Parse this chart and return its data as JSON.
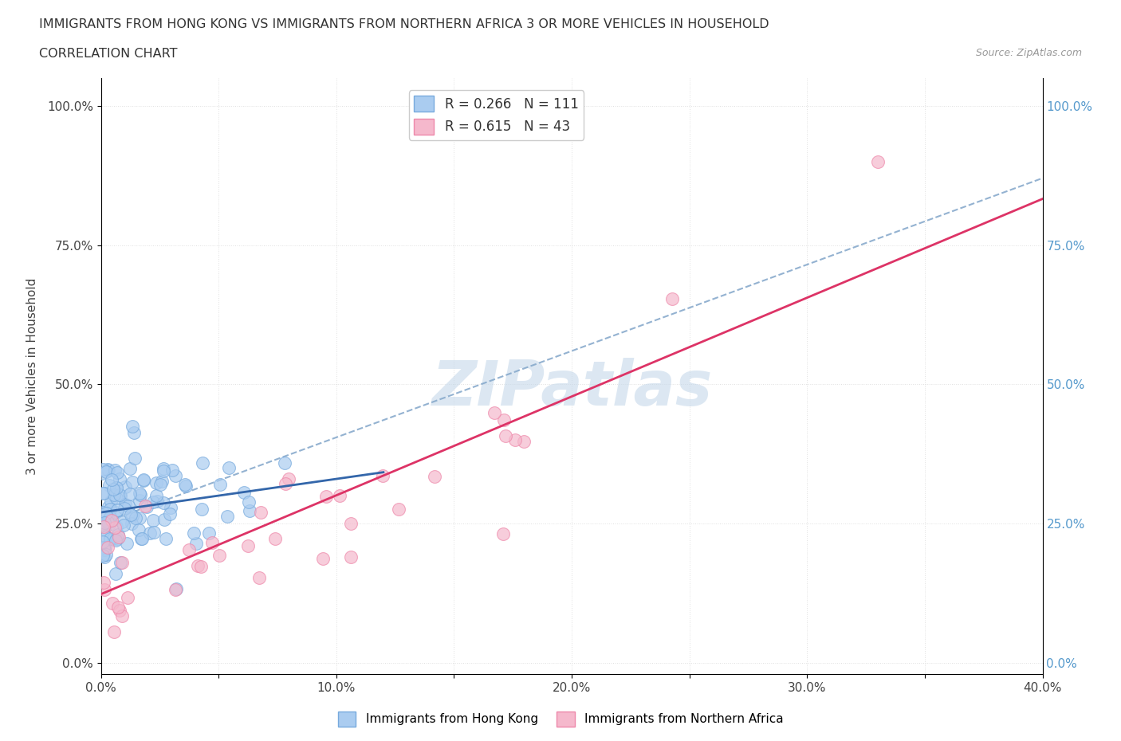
{
  "title_line1": "IMMIGRANTS FROM HONG KONG VS IMMIGRANTS FROM NORTHERN AFRICA 3 OR MORE VEHICLES IN HOUSEHOLD",
  "title_line2": "CORRELATION CHART",
  "source": "Source: ZipAtlas.com",
  "ylabel": "3 or more Vehicles in Household",
  "xlim": [
    0.0,
    0.4
  ],
  "ylim": [
    -0.02,
    1.05
  ],
  "xtick_labels": [
    "0.0%",
    "",
    "10.0%",
    "",
    "20.0%",
    "",
    "30.0%",
    "",
    "40.0%"
  ],
  "xtick_vals": [
    0.0,
    0.05,
    0.1,
    0.15,
    0.2,
    0.25,
    0.3,
    0.35,
    0.4
  ],
  "ytick_labels": [
    "0.0%",
    "25.0%",
    "50.0%",
    "75.0%",
    "100.0%"
  ],
  "ytick_vals": [
    0.0,
    0.25,
    0.5,
    0.75,
    1.0
  ],
  "right_ytick_labels": [
    "0.0%",
    "25.0%",
    "50.0%",
    "75.0%",
    "100.0%"
  ],
  "blue_R": 0.266,
  "blue_N": 111,
  "pink_R": 0.615,
  "pink_N": 43,
  "blue_color": "#aaccf0",
  "blue_edge": "#77aadd",
  "blue_line_color": "#3366aa",
  "pink_color": "#f5b8cc",
  "pink_edge": "#ee88aa",
  "pink_line_color": "#dd3366",
  "dash_line_color": "#88aacc",
  "watermark": "ZIPatlas",
  "watermark_color": "#c5d8ea",
  "legend_label_blue": "Immigrants from Hong Kong",
  "legend_label_pink": "Immigrants from Northern Africa",
  "bg_color": "#ffffff",
  "grid_color": "#e0e0e0",
  "right_tick_color": "#5599cc"
}
